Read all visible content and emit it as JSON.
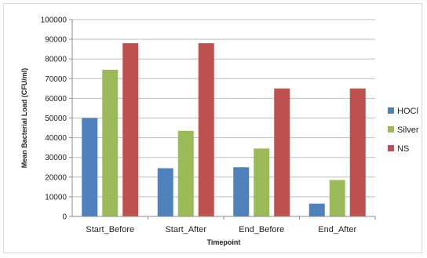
{
  "chart_data": {
    "type": "bar",
    "title": "",
    "xlabel": "Timepoint",
    "ylabel": "Mean Bacterial Load (CFU/ml)",
    "categories": [
      "Start_Before",
      "Start_After",
      "End_Before",
      "End_After"
    ],
    "series": [
      {
        "name": "HOCl",
        "color": "#4f81bd",
        "values": [
          50000,
          24500,
          25000,
          6500
        ]
      },
      {
        "name": "Silver",
        "color": "#9bbb59",
        "values": [
          74500,
          43500,
          34500,
          18500
        ]
      },
      {
        "name": "NS",
        "color": "#c0504d",
        "values": [
          88000,
          88000,
          65000,
          65000
        ]
      }
    ],
    "ylim": [
      0,
      100000
    ],
    "yticks": [
      "0",
      "10000",
      "20000",
      "30000",
      "40000",
      "50000",
      "60000",
      "70000",
      "80000",
      "90000",
      "100000"
    ],
    "grid": true,
    "legend_position": "right"
  }
}
